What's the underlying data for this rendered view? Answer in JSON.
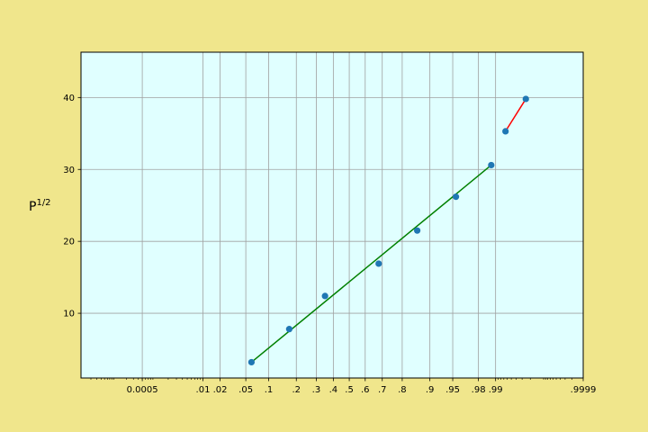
{
  "chart_data": {
    "type": "scatter",
    "title": "",
    "xlabel": "",
    "ylabel_main": "P",
    "ylabel_sup": "1/2",
    "x_scale": "normal-probability",
    "xlim": [
      1e-05,
      0.9999
    ],
    "ylim": [
      1,
      46.3
    ],
    "grid": true,
    "x_ticks": [
      {
        "p": 0.0005,
        "label": "0.0005"
      },
      {
        "p": 0.01,
        "label": ".01"
      },
      {
        "p": 0.02,
        "label": ".02"
      },
      {
        "p": 0.05,
        "label": ".05"
      },
      {
        "p": 0.1,
        "label": ".1"
      },
      {
        "p": 0.2,
        "label": ".2"
      },
      {
        "p": 0.3,
        "label": ".3"
      },
      {
        "p": 0.4,
        "label": ".4"
      },
      {
        "p": 0.5,
        "label": ".5"
      },
      {
        "p": 0.6,
        "label": ".6"
      },
      {
        "p": 0.7,
        "label": ".7"
      },
      {
        "p": 0.8,
        "label": ".8"
      },
      {
        "p": 0.9,
        "label": ".9"
      },
      {
        "p": 0.95,
        "label": ".95"
      },
      {
        "p": 0.98,
        "label": ".98"
      },
      {
        "p": 0.99,
        "label": ".99"
      },
      {
        "p": 0.9999,
        "label": ".9999"
      }
    ],
    "y_ticks": [
      {
        "v": 10,
        "label": "10"
      },
      {
        "v": 20,
        "label": "20"
      },
      {
        "v": 30,
        "label": "30"
      },
      {
        "v": 40,
        "label": "40"
      }
    ],
    "points": [
      {
        "p": 0.06,
        "y": 3.2
      },
      {
        "p": 0.17,
        "y": 7.8
      },
      {
        "p": 0.35,
        "y": 12.4
      },
      {
        "p": 0.68,
        "y": 16.9
      },
      {
        "p": 0.86,
        "y": 21.5
      },
      {
        "p": 0.955,
        "y": 26.2
      },
      {
        "p": 0.988,
        "y": 30.6
      },
      {
        "p": 0.9935,
        "y": 35.3
      },
      {
        "p": 0.9975,
        "y": 39.8
      }
    ],
    "fit_lines": [
      {
        "name": "fit-1",
        "color": "#008000",
        "from": {
          "p": 0.06,
          "y": 3.2
        },
        "to": {
          "p": 0.988,
          "y": 30.6
        }
      },
      {
        "name": "fit-2",
        "color": "#ff0000",
        "from": {
          "p": 0.9935,
          "y": 35.3
        },
        "to": {
          "p": 0.9975,
          "y": 39.8
        }
      }
    ],
    "colors": {
      "page_background": "#f0e68c",
      "plot_background": "#e0ffff",
      "grid": "#a0a0a0",
      "points": "#1f77b4"
    }
  }
}
